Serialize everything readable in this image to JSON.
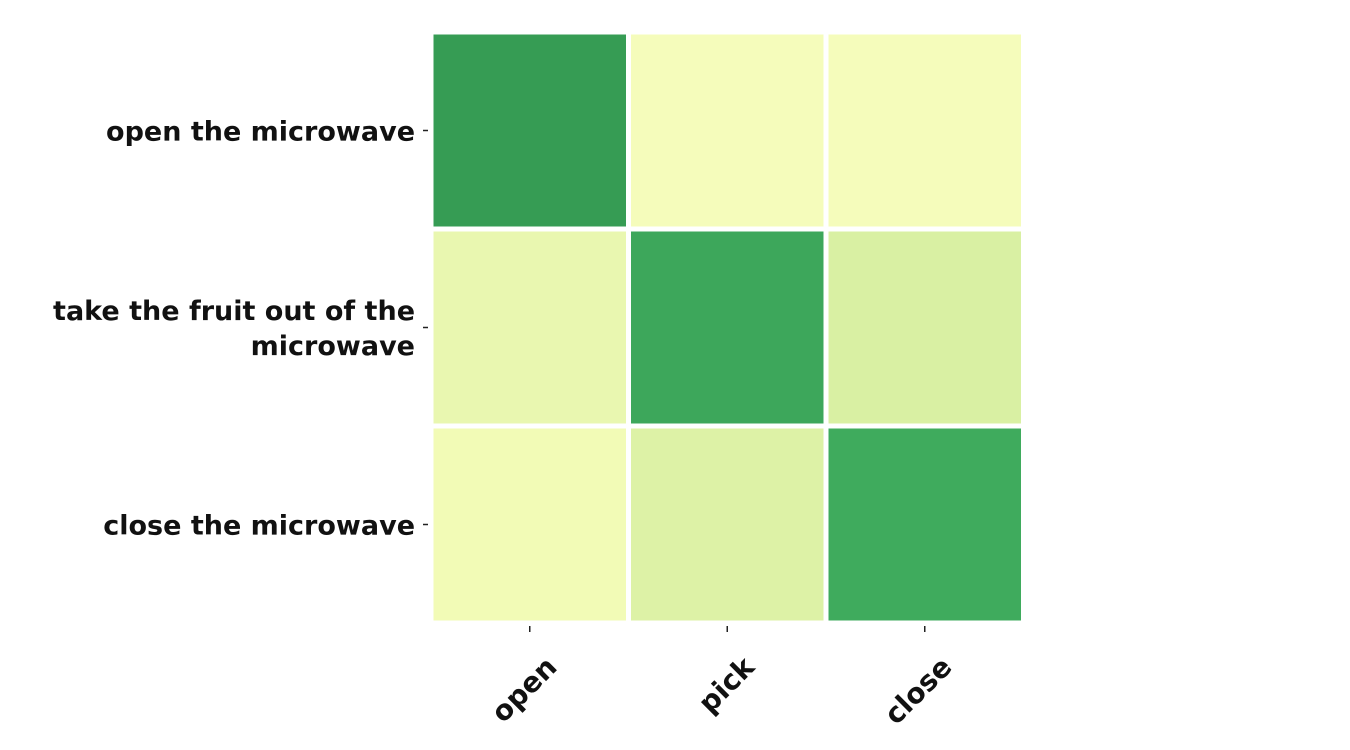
{
  "chart_data": {
    "type": "heatmap",
    "title": "",
    "xlabel": "",
    "ylabel": "",
    "x_categories": [
      "open",
      "pick",
      "close"
    ],
    "y_categories": [
      [
        "open the microwave"
      ],
      [
        "take the fruit out of the",
        "microwave"
      ],
      [
        "close the microwave"
      ]
    ],
    "values": [
      [
        0.95,
        0.12,
        0.12
      ],
      [
        0.2,
        0.88,
        0.3
      ],
      [
        0.14,
        0.25,
        0.88
      ]
    ],
    "value_range": [
      0,
      1
    ],
    "colormap": [
      "#ffffcc",
      "#f7fcb9",
      "#d9f0a3",
      "#addd8e",
      "#78c679",
      "#41ab5d",
      "#238443"
    ],
    "cell_colors": [
      [
        "#369c54",
        "#f5fcbb",
        "#f5fcbb"
      ],
      [
        "#e9f7b0",
        "#3da75b",
        "#d9f0a3"
      ],
      [
        "#f2fbb6",
        "#ddf2a6",
        "#3fab5d"
      ]
    ],
    "grid_line_color": "#ffffff",
    "legend": "none"
  }
}
